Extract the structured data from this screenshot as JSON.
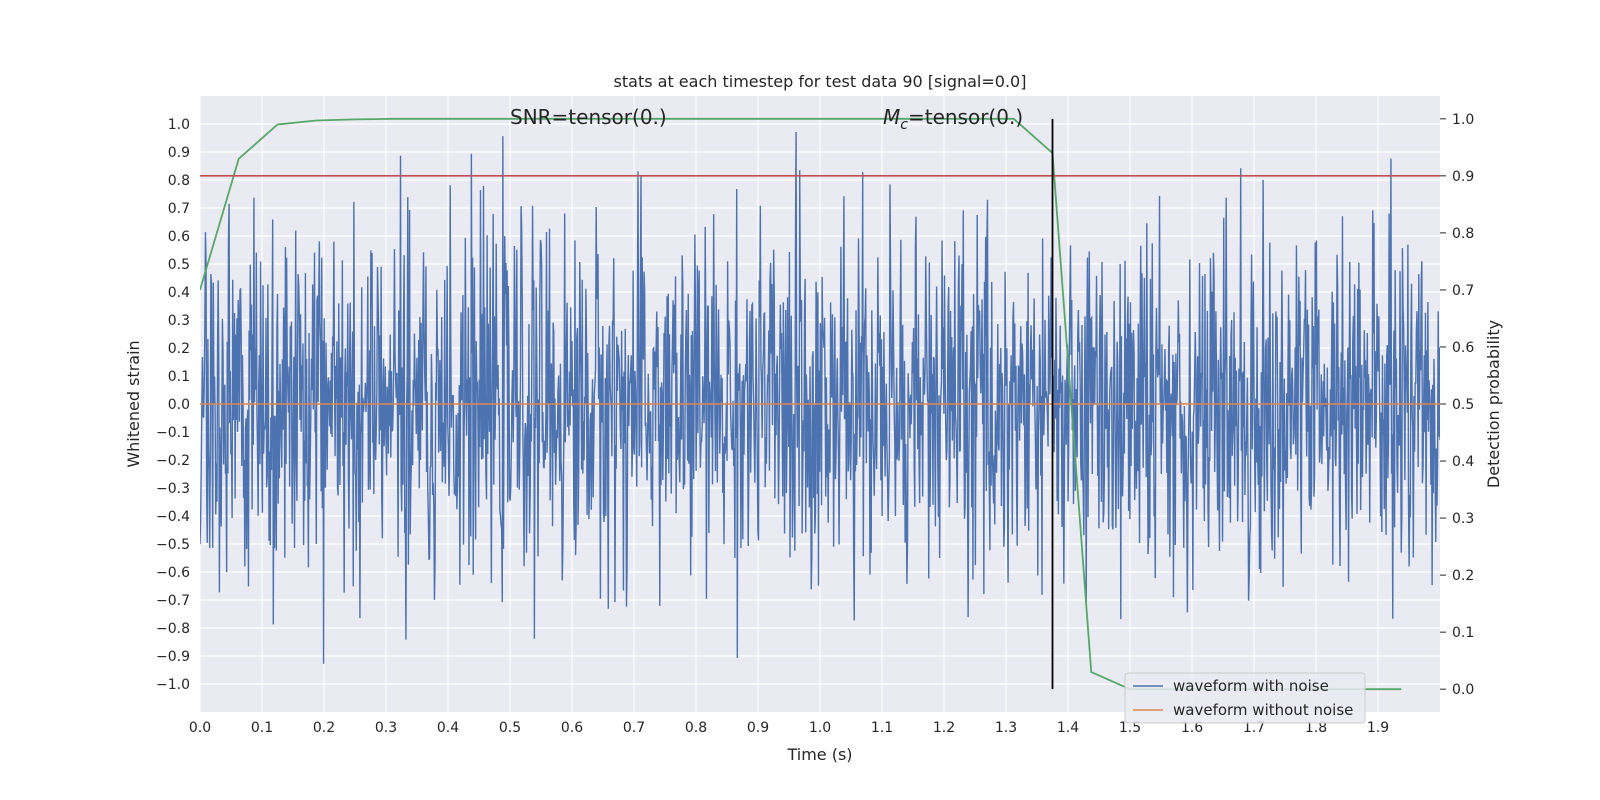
{
  "chart_data": {
    "type": "line",
    "title": "stats at each timestep for test data 90 [signal=0.0]",
    "xlabel": "Time (s)",
    "ylabel": "Whitened strain",
    "y2label": "Detection probability",
    "xlim": [
      0.0,
      2.0
    ],
    "ylim": [
      -1.1,
      1.1
    ],
    "y2lim": [
      -0.04,
      1.04
    ],
    "x_ticks": [
      "0.0",
      "0.1",
      "0.2",
      "0.3",
      "0.4",
      "0.5",
      "0.6",
      "0.7",
      "0.8",
      "0.9",
      "1.0",
      "1.1",
      "1.2",
      "1.3",
      "1.4",
      "1.5",
      "1.6",
      "1.7",
      "1.8",
      "1.9"
    ],
    "y_ticks": [
      "1.0",
      "0.9",
      "0.8",
      "0.7",
      "0.6",
      "0.5",
      "0.4",
      "0.3",
      "0.2",
      "0.1",
      "0.0",
      "−0.1",
      "−0.2",
      "−0.3",
      "−0.4",
      "−0.5",
      "−0.6",
      "−0.7",
      "−0.8",
      "−0.9",
      "−1.0"
    ],
    "y2_ticks": [
      "1.0",
      "0.9",
      "0.8",
      "0.7",
      "0.6",
      "0.5",
      "0.4",
      "0.3",
      "0.2",
      "0.1",
      "0.0"
    ],
    "grid": true,
    "annotations": {
      "snr": "SNR=tensor(0.)",
      "mc_symbol": "M",
      "mc_sub": "c",
      "mc_value": "=tensor(0.)"
    },
    "series": [
      {
        "name": "waveform with noise",
        "color": "#4c72b0",
        "axis": "left",
        "kind": "noise",
        "t_start": 0.0,
        "t_end": 2.0,
        "amplitude": 1.0
      },
      {
        "name": "waveform without noise",
        "color": "#dd8452",
        "axis": "left",
        "x": [
          0.0,
          2.0
        ],
        "y": [
          0.0,
          0.0
        ]
      },
      {
        "color": "#55a868",
        "axis": "right",
        "x": [
          0.0,
          0.0625,
          0.125,
          0.1875,
          0.25,
          0.3125,
          1.3125,
          1.375,
          1.4375,
          1.5,
          1.5625,
          1.625,
          1.6875,
          1.75,
          1.8125,
          1.875,
          1.9375
        ],
        "y": [
          0.7,
          0.93,
          0.99,
          0.997,
          0.999,
          1.0,
          1.0,
          0.94,
          0.03,
          0.0,
          0.0,
          0.0,
          0.0,
          0.0,
          0.0,
          0.0,
          0.0
        ]
      }
    ],
    "hlines": [
      {
        "y2": 0.9,
        "color": "#c44e52"
      }
    ],
    "vlines": [
      {
        "x": 1.375,
        "y2_from": 0.0,
        "y2_to": 1.0,
        "color": "#000000"
      }
    ],
    "legend": {
      "position": "lower-right",
      "entries": [
        "waveform with noise",
        "waveform without noise"
      ]
    }
  }
}
